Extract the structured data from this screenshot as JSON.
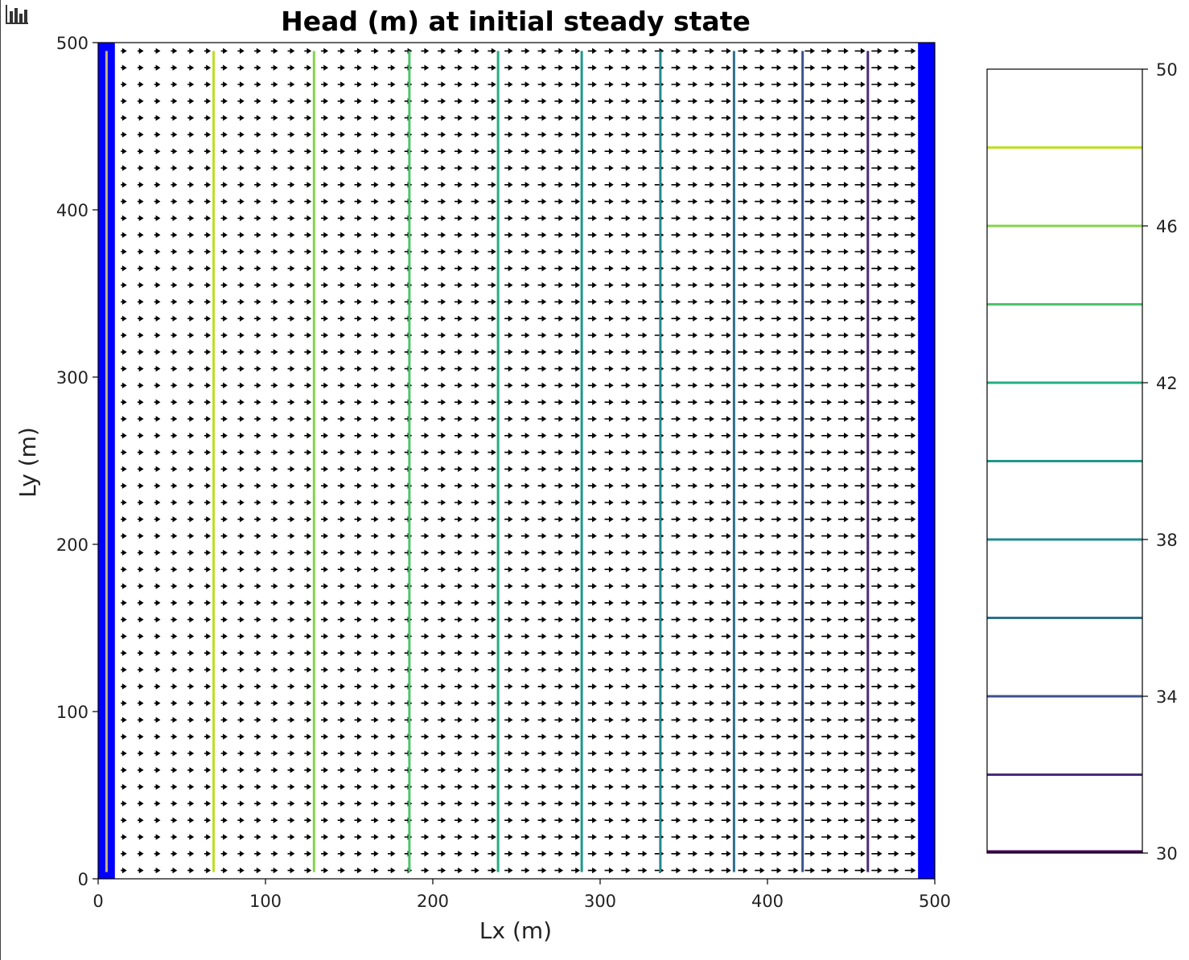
{
  "chart_data": {
    "type": "contour",
    "title": "Head (m) at initial steady state",
    "xlabel": "Lx (m)",
    "ylabel": "Ly (m)",
    "xlim": [
      0,
      500
    ],
    "ylim": [
      0,
      500
    ],
    "xticks": [
      "0",
      "100",
      "200",
      "300",
      "400",
      "500"
    ],
    "yticks": [
      "0",
      "100",
      "200",
      "300",
      "400",
      "500"
    ],
    "grid": false,
    "boundary_color": "#0000ff",
    "boundary_bands": [
      {
        "x_start": 0,
        "x_end": 10
      },
      {
        "x_start": 490,
        "x_end": 500
      }
    ],
    "contours": [
      {
        "level": 50,
        "x": 5,
        "color": "#c8b878"
      },
      {
        "level": 48,
        "x": 69,
        "color": "#bddf26"
      },
      {
        "level": 46,
        "x": 129,
        "color": "#84d44b"
      },
      {
        "level": 44,
        "x": 186,
        "color": "#4ec36b"
      },
      {
        "level": 42,
        "x": 239,
        "color": "#25ac82"
      },
      {
        "level": 40,
        "x": 289,
        "color": "#1f988b"
      },
      {
        "level": 38,
        "x": 336,
        "color": "#23888e"
      },
      {
        "level": 36,
        "x": 380,
        "color": "#2d708e"
      },
      {
        "level": 34,
        "x": 421,
        "color": "#3b528b"
      },
      {
        "level": 32,
        "x": 460,
        "color": "#472c7a"
      }
    ],
    "colorbar": {
      "range": [
        30,
        50
      ],
      "tick_labels": [
        "50",
        "46",
        "42",
        "38",
        "34",
        "30"
      ],
      "levels": [
        {
          "value": 48,
          "color": "#bddf26"
        },
        {
          "value": 46,
          "color": "#84d44b"
        },
        {
          "value": 44,
          "color": "#4ec36b"
        },
        {
          "value": 42,
          "color": "#25ac82"
        },
        {
          "value": 40,
          "color": "#1f988b"
        },
        {
          "value": 38,
          "color": "#23888e"
        },
        {
          "value": 36,
          "color": "#2d708e"
        },
        {
          "value": 34,
          "color": "#3b528b"
        },
        {
          "value": 32,
          "color": "#472c7a"
        },
        {
          "value": 30,
          "color": "#440154"
        }
      ]
    },
    "quiver": {
      "direction": "+x",
      "x_range": [
        15,
        485
      ],
      "y_range": [
        5,
        495
      ],
      "nx": 48,
      "ny": 50,
      "color": "#000000"
    }
  }
}
